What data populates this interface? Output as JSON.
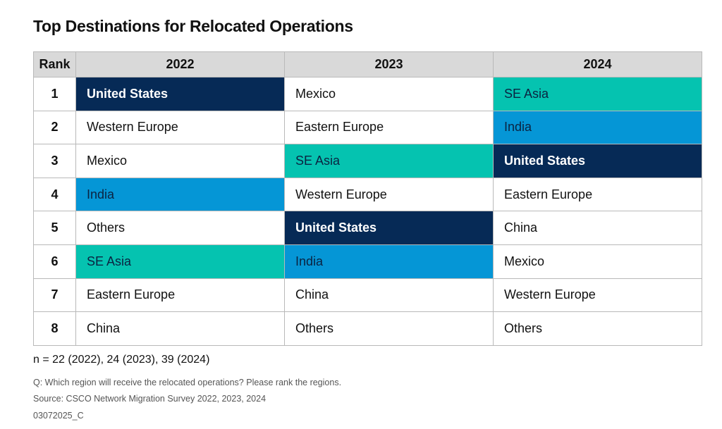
{
  "title": "Top Destinations for Relocated Operations",
  "table": {
    "header": [
      "Rank",
      "2022",
      "2023",
      "2024"
    ],
    "rows": [
      [
        1,
        {
          "text": "United States",
          "fill": "#062a56",
          "text_color": "#ffffff",
          "bold": true
        },
        {
          "text": "Mexico"
        },
        {
          "text": "SE Asia",
          "fill": "#05c3b0",
          "text_color": "#0b2341"
        }
      ],
      [
        2,
        {
          "text": "Western Europe"
        },
        {
          "text": "Eastern Europe"
        },
        {
          "text": "India",
          "fill": "#0596d6",
          "text_color": "#0b2341"
        }
      ],
      [
        3,
        {
          "text": "Mexico"
        },
        {
          "text": "SE Asia",
          "fill": "#05c3b0",
          "text_color": "#0b2341"
        },
        {
          "text": "United States",
          "fill": "#062a56",
          "text_color": "#ffffff",
          "bold": true
        }
      ],
      [
        4,
        {
          "text": "India",
          "fill": "#0596d6",
          "text_color": "#0b2341"
        },
        {
          "text": "Western Europe"
        },
        {
          "text": "Eastern Europe"
        }
      ],
      [
        5,
        {
          "text": "Others"
        },
        {
          "text": "United States",
          "fill": "#062a56",
          "text_color": "#ffffff",
          "bold": true
        },
        {
          "text": "China"
        }
      ],
      [
        6,
        {
          "text": "SE Asia",
          "fill": "#05c3b0",
          "text_color": "#0b2341"
        },
        {
          "text": "India",
          "fill": "#0596d6",
          "text_color": "#0b2341"
        },
        {
          "text": "Mexico"
        }
      ],
      [
        7,
        {
          "text": "Eastern Europe"
        },
        {
          "text": "China"
        },
        {
          "text": "Western Europe"
        }
      ],
      [
        8,
        {
          "text": "China"
        },
        {
          "text": "Others"
        },
        {
          "text": "Others"
        }
      ]
    ]
  },
  "sample_note": "n = 22 (2022), 24 (2023), 39 (2024)",
  "question": "Q: Which region will receive the relocated operations? Please rank the regions.",
  "source": "Source: CSCO Network Migration Survey 2022, 2023, 2024",
  "code": "03072025_C"
}
